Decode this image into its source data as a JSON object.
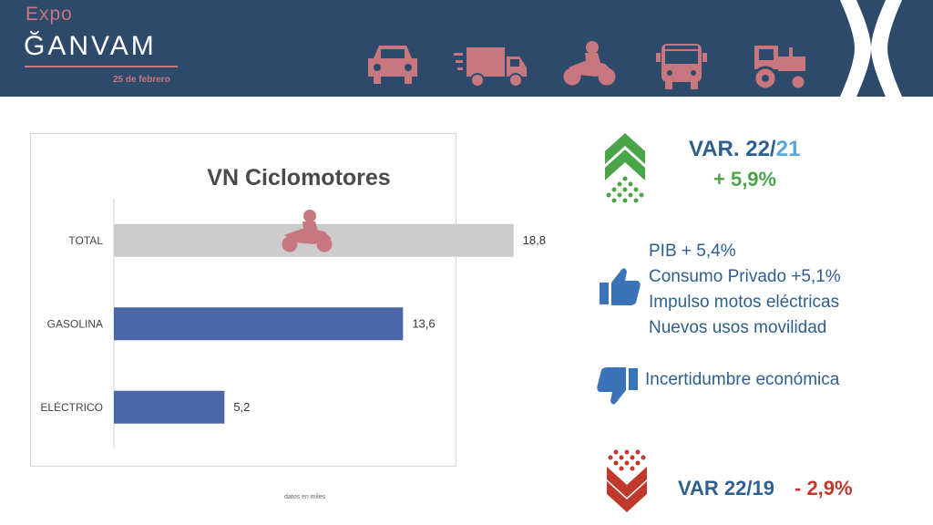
{
  "header": {
    "logo_expo": "Expo",
    "logo_ganvam": "ĞANVAM",
    "event_date": "25 de febrero",
    "vehicle_icons": [
      "car-icon",
      "truck-icon",
      "motorcycle-icon",
      "bus-icon",
      "tractor-icon"
    ],
    "brand_color": "#2e4a6b",
    "accent_color": "#c9777f"
  },
  "chart_data": {
    "type": "bar",
    "orientation": "horizontal",
    "title": "VN Ciclomotores",
    "categories": [
      "TOTAL",
      "GASOLINA",
      "ELÉCTRICO"
    ],
    "values": [
      18.8,
      13.6,
      5.2
    ],
    "value_labels": [
      "18,8",
      "13,6",
      "5,2"
    ],
    "colors": [
      "#cccccc",
      "#4b67a8",
      "#4b67a8"
    ],
    "xlim": [
      0,
      21
    ],
    "grid": false,
    "footnote": "datos en miles"
  },
  "summary": {
    "var_title_prefix": "VAR. 22/",
    "var_title_suffix": "21",
    "var_value": "+ 5,9%",
    "positives": [
      "PIB + 5,4%",
      "Consumo Privado +5,1%",
      "Impulso motos eléctricas",
      "Nuevos usos movilidad"
    ],
    "negative": "Incertidumbre económica",
    "var2_label": "VAR 22/19",
    "var2_value": "- 2,9%",
    "up_color": "#4aa548",
    "down_color": "#c0392b"
  }
}
